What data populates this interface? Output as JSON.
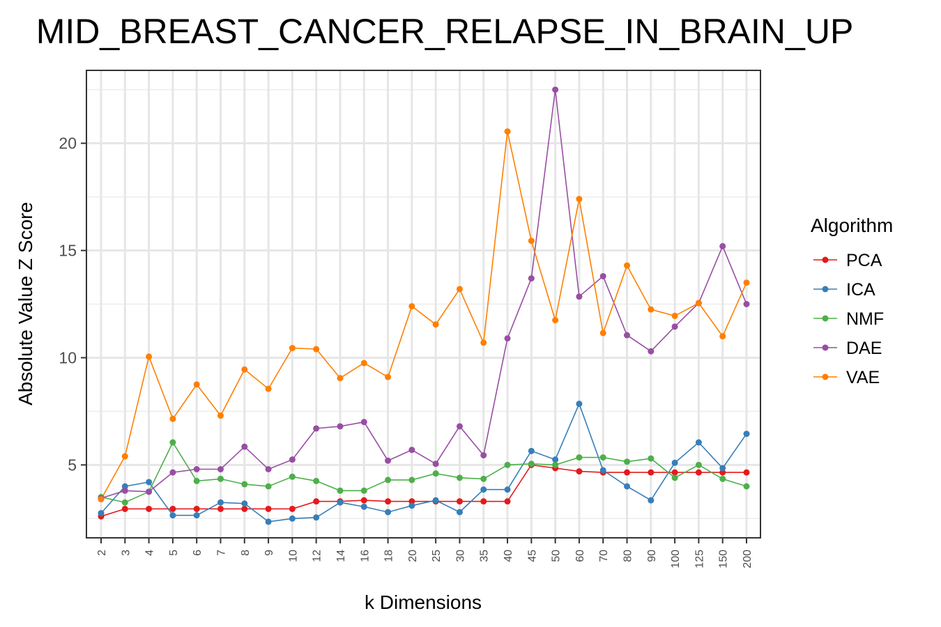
{
  "chart_data": {
    "type": "line",
    "title": "MID_BREAST_CANCER_RELAPSE_IN_BRAIN_UP",
    "xlabel": "k Dimensions",
    "ylabel": "Absolute Value Z Score",
    "ylim": [
      1.6,
      23.4
    ],
    "yticks": [
      5,
      10,
      15,
      20
    ],
    "grid": true,
    "legend_title": "Algorithm",
    "legend_position": "right",
    "categories": [
      "2",
      "3",
      "4",
      "5",
      "6",
      "7",
      "8",
      "9",
      "10",
      "12",
      "14",
      "16",
      "18",
      "20",
      "25",
      "30",
      "35",
      "40",
      "45",
      "50",
      "60",
      "70",
      "80",
      "90",
      "100",
      "125",
      "150",
      "200"
    ],
    "series": [
      {
        "name": "PCA",
        "color": "#E41A1C",
        "values": [
          2.6,
          2.95,
          2.95,
          2.95,
          2.95,
          2.95,
          2.95,
          2.95,
          2.95,
          3.3,
          3.3,
          3.35,
          3.3,
          3.3,
          3.3,
          3.3,
          3.3,
          3.3,
          5.0,
          4.85,
          4.7,
          4.65,
          4.65,
          4.65,
          4.65,
          4.65,
          4.65,
          4.65
        ]
      },
      {
        "name": "ICA",
        "color": "#377EB8",
        "values": [
          2.75,
          4.0,
          4.2,
          2.65,
          2.65,
          3.25,
          3.2,
          2.35,
          2.5,
          2.55,
          3.25,
          3.05,
          2.8,
          3.1,
          3.35,
          2.8,
          3.85,
          3.85,
          5.65,
          5.25,
          7.85,
          4.75,
          4.0,
          3.35,
          5.1,
          6.05,
          4.85,
          6.45
        ]
      },
      {
        "name": "NMF",
        "color": "#4DAF4A",
        "values": [
          3.5,
          3.25,
          3.75,
          6.05,
          4.25,
          4.35,
          4.1,
          4.0,
          4.45,
          4.25,
          3.8,
          3.8,
          4.3,
          4.3,
          4.6,
          4.4,
          4.35,
          5.0,
          5.05,
          5.0,
          5.35,
          5.35,
          5.15,
          5.3,
          4.4,
          5.0,
          4.35,
          4.0
        ]
      },
      {
        "name": "DAE",
        "color": "#984EA3",
        "values": [
          3.45,
          3.8,
          3.75,
          4.65,
          4.8,
          4.8,
          5.85,
          4.8,
          5.25,
          6.7,
          6.8,
          7.0,
          5.2,
          5.7,
          5.05,
          6.8,
          5.45,
          10.9,
          13.7,
          22.5,
          12.85,
          13.8,
          11.05,
          10.3,
          11.45,
          12.55,
          15.2,
          12.5
        ]
      },
      {
        "name": "VAE",
        "color": "#FF7F00",
        "values": [
          3.4,
          5.4,
          10.05,
          7.15,
          8.75,
          7.3,
          9.45,
          8.55,
          10.45,
          10.4,
          9.05,
          9.75,
          9.1,
          12.4,
          11.55,
          13.2,
          10.7,
          20.55,
          15.45,
          11.75,
          17.4,
          11.15,
          14.3,
          12.25,
          11.95,
          12.55,
          11.0,
          13.5
        ]
      }
    ]
  }
}
